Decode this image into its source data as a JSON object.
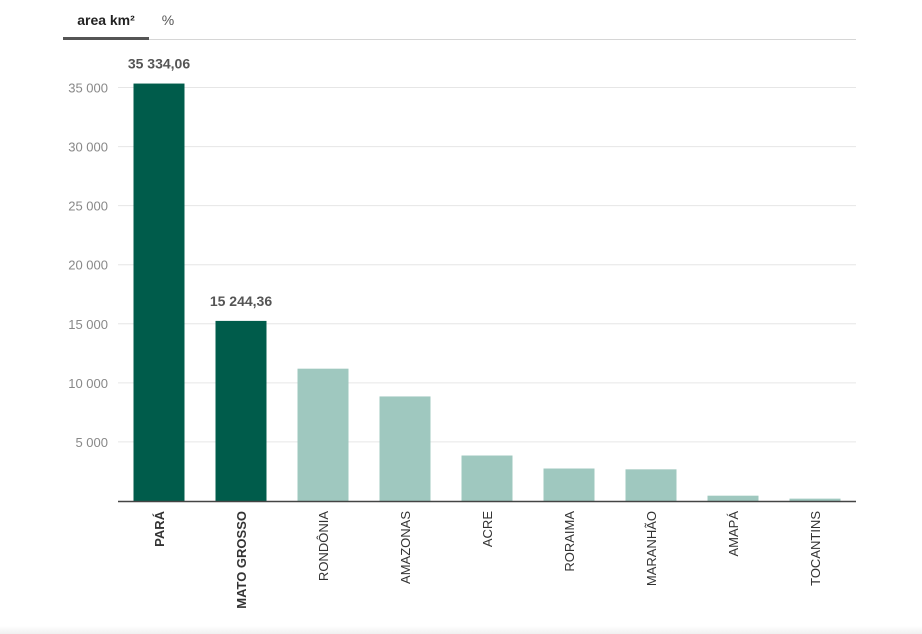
{
  "tabs": [
    {
      "label": "area km²",
      "active": true
    },
    {
      "label": "%",
      "active": false
    }
  ],
  "colors": {
    "highlight": "#005c4b",
    "normal": "#9fc8bf",
    "grid": "#e6e6e6",
    "axis": "#444444"
  },
  "chart_data": {
    "type": "bar",
    "categories": [
      "PARÁ",
      "MATO GROSSO",
      "RONDÔNIA",
      "AMAZONAS",
      "ACRE",
      "RORAIMA",
      "MARANHÃO",
      "AMAPÁ",
      "TOCANTINS"
    ],
    "values": [
      35334.06,
      15244.36,
      11200,
      8850,
      3850,
      2750,
      2680,
      450,
      200
    ],
    "highlighted": [
      true,
      true,
      false,
      false,
      false,
      false,
      false,
      false,
      false
    ],
    "data_labels": [
      "35 334,06",
      "15 244,36",
      "",
      "",
      "",
      "",
      "",
      "",
      ""
    ],
    "yticks": [
      5000,
      10000,
      15000,
      20000,
      25000,
      30000,
      35000
    ],
    "ytick_labels": [
      "5 000",
      "10 000",
      "15 000",
      "20 000",
      "25 000",
      "30 000",
      "35 000"
    ],
    "ylim": [
      0,
      37000
    ],
    "grid": true,
    "title": "",
    "xlabel": "",
    "ylabel": ""
  }
}
